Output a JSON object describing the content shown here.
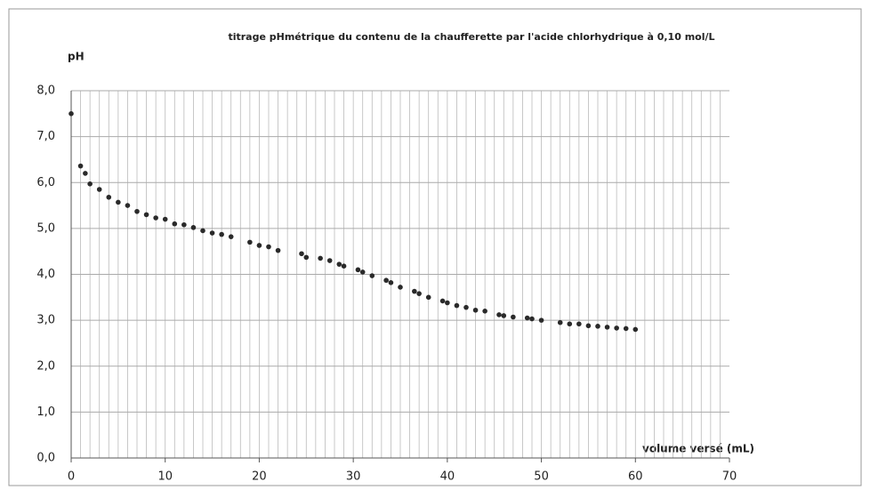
{
  "chart_data": {
    "type": "scatter",
    "title": "titrage pHmétrique du contenu de la chaufferette par l'acide chlorhydrique à 0,10 mol/L",
    "y_label": "pH",
    "x_label": "volume versé (mL)",
    "color": "#2a2a2a",
    "grid": true,
    "x_grid_step": 1,
    "xlim": [
      0,
      70
    ],
    "xticks": [
      0,
      10,
      20,
      30,
      40,
      50,
      60,
      70
    ],
    "ylim": [
      0,
      8
    ],
    "yticks": [
      {
        "value": 0,
        "label": "0,0"
      },
      {
        "value": 1,
        "label": "1,0"
      },
      {
        "value": 2,
        "label": "2,0"
      },
      {
        "value": 3,
        "label": "3,0"
      },
      {
        "value": 4,
        "label": "4,0"
      },
      {
        "value": 5,
        "label": "5,0"
      },
      {
        "value": 6,
        "label": "6,0"
      },
      {
        "value": 7,
        "label": "7,0"
      },
      {
        "value": 8,
        "label": "8,0"
      }
    ],
    "x": [
      0,
      1,
      1.5,
      2,
      3,
      4,
      5,
      6,
      7,
      8,
      9,
      10,
      11,
      12,
      13,
      14,
      15,
      16,
      17,
      19,
      20,
      21,
      22,
      24.5,
      25,
      26.5,
      27.5,
      28.5,
      29,
      30.5,
      31,
      32,
      33.5,
      34,
      35,
      36.5,
      37,
      38,
      39.5,
      40,
      41,
      42,
      43,
      44,
      45.5,
      46,
      47,
      48.5,
      49,
      50,
      52,
      53,
      54,
      55,
      56,
      57,
      58,
      59,
      60
    ],
    "values": [
      7.5,
      6.36,
      6.2,
      5.97,
      5.85,
      5.68,
      5.57,
      5.5,
      5.37,
      5.3,
      5.23,
      5.2,
      5.1,
      5.08,
      5.02,
      4.95,
      4.9,
      4.87,
      4.82,
      4.7,
      4.63,
      4.6,
      4.52,
      4.45,
      4.37,
      4.35,
      4.3,
      4.22,
      4.18,
      4.1,
      4.05,
      3.97,
      3.87,
      3.82,
      3.72,
      3.63,
      3.58,
      3.5,
      3.42,
      3.38,
      3.32,
      3.28,
      3.22,
      3.2,
      3.12,
      3.1,
      3.07,
      3.05,
      3.03,
      3.0,
      2.95,
      2.92,
      2.92,
      2.88,
      2.87,
      2.85,
      2.83,
      2.82,
      2.8
    ]
  }
}
